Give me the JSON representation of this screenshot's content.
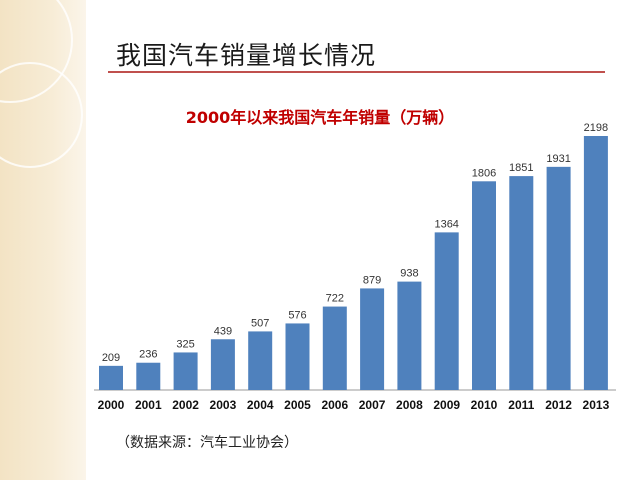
{
  "slide": {
    "title": "我国汽车销量增长情况",
    "source": "（数据来源：汽车工业协会）"
  },
  "colors": {
    "bar": "#4f81bd",
    "title_rule": "#c0504d",
    "chart_title": "#c00000",
    "left_band": "#f3e3c4"
  },
  "chart_data": {
    "type": "bar",
    "title": "2000年以来我国汽车年销量（万辆）",
    "xlabel": "",
    "ylabel": "",
    "categories": [
      "2000",
      "2001",
      "2002",
      "2003",
      "2004",
      "2005",
      "2006",
      "2007",
      "2008",
      "2009",
      "2010",
      "2011",
      "2012",
      "2013"
    ],
    "values": [
      209,
      236,
      325,
      439,
      507,
      576,
      722,
      879,
      938,
      1364,
      1806,
      1851,
      1931,
      2198
    ],
    "data_labels": [
      "209",
      "236",
      "325",
      "439",
      "507",
      "576",
      "722",
      "879",
      "938",
      "1364",
      "1806",
      "1851",
      "1931",
      "2198"
    ],
    "ylim": [
      0,
      2198
    ],
    "grid": false,
    "legend": "none"
  }
}
